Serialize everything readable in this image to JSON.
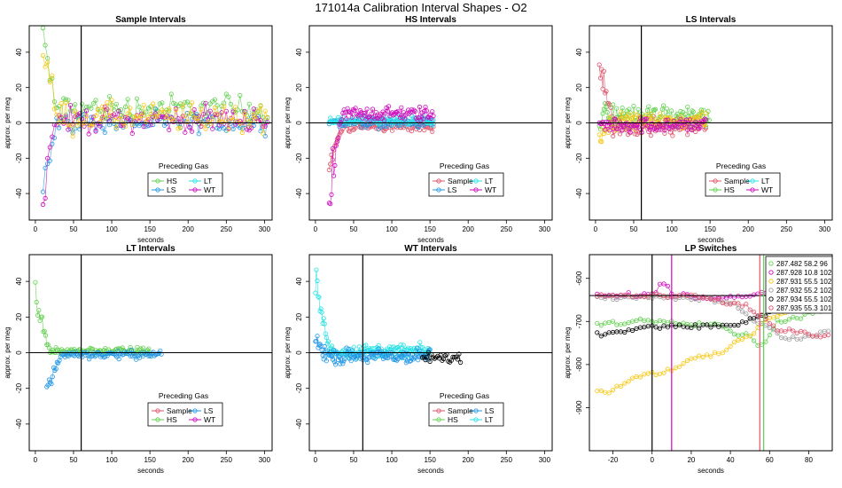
{
  "figure_title": "171014a   Calibration Interval Shapes - O2",
  "colors": {
    "Sample": "#df536b",
    "HS": "#61d04f",
    "LS": "#2297e6",
    "LT": "#28e2e5",
    "WT": "#cd0bbc",
    "ST": "#f5c710",
    "OTHER": "#000000",
    "GRAY": "#9e9e9e"
  },
  "chart_data": [
    {
      "id": "sample",
      "type": "scatter",
      "title": "Sample Intervals",
      "xlabel": "seconds",
      "ylabel": "approx. per meg",
      "xlim": [
        -8,
        310
      ],
      "ylim": [
        -55,
        55
      ],
      "xticks": [
        0,
        50,
        100,
        150,
        200,
        250,
        300
      ],
      "yticks": [
        -40,
        -20,
        0,
        20,
        40
      ],
      "vlines": [
        60
      ],
      "hline": 0,
      "legend": {
        "title": "Preceding Gas",
        "entries": [
          "HS",
          "LT",
          "LS",
          "WT"
        ]
      },
      "series": [
        {
          "name": "HS",
          "color": "#61d04f",
          "kind": "noisy",
          "start": 10,
          "end": 305,
          "dt": 3,
          "amp": 6,
          "drift": 8,
          "spike": 45
        },
        {
          "name": "LS",
          "color": "#2297e6",
          "kind": "noisy",
          "start": 10,
          "end": 305,
          "dt": 3,
          "amp": 4,
          "drift": 0,
          "spike": -40
        },
        {
          "name": "WT",
          "color": "#cd0bbc",
          "kind": "noisy",
          "start": 10,
          "end": 305,
          "dt": 3,
          "amp": 5,
          "drift": 2,
          "spike": -50
        },
        {
          "name": "ST",
          "color": "#f5c710",
          "kind": "noisy",
          "start": 10,
          "end": 305,
          "dt": 3,
          "amp": 6,
          "drift": 3,
          "spike": 55
        }
      ]
    },
    {
      "id": "hs",
      "type": "scatter",
      "title": "HS Intervals",
      "xlabel": "seconds",
      "ylabel": "approx. per meg",
      "xlim": [
        -8,
        310
      ],
      "ylim": [
        -55,
        55
      ],
      "xticks": [
        0,
        50,
        100,
        150,
        200,
        250,
        300
      ],
      "yticks": [
        -40,
        -20,
        0,
        20,
        40
      ],
      "vlines": [],
      "hline": 0,
      "legend": {
        "title": "Preceding Gas",
        "entries": [
          "Sample",
          "LT",
          "LS",
          "WT"
        ]
      },
      "series": [
        {
          "name": "Sample",
          "color": "#df536b",
          "kind": "noisy",
          "start": 18,
          "end": 155,
          "dt": 1.5,
          "amp": 2,
          "drift": -2,
          "spike": -25
        },
        {
          "name": "LS",
          "color": "#2297e6",
          "kind": "noisy",
          "start": 18,
          "end": 155,
          "dt": 1.5,
          "amp": 2,
          "drift": 0,
          "spike": 0
        },
        {
          "name": "LT",
          "color": "#28e2e5",
          "kind": "noisy",
          "start": 18,
          "end": 155,
          "dt": 1.5,
          "amp": 2,
          "drift": 1,
          "spike": 0
        },
        {
          "name": "WT",
          "color": "#cd0bbc",
          "kind": "noisy",
          "start": 18,
          "end": 155,
          "dt": 1.5,
          "amp": 3,
          "drift": 5,
          "spike": -55
        }
      ]
    },
    {
      "id": "ls",
      "type": "scatter",
      "title": "LS Intervals",
      "xlabel": "seconds",
      "ylabel": "approx. per meg",
      "xlim": [
        -8,
        310
      ],
      "ylim": [
        -55,
        55
      ],
      "xticks": [
        0,
        50,
        100,
        150,
        200,
        250,
        300
      ],
      "yticks": [
        -40,
        -20,
        0,
        20,
        40
      ],
      "vlines": [
        60
      ],
      "hline": 0,
      "legend": {
        "title": "Preceding Gas",
        "entries": [
          "Sample",
          "LT",
          "HS",
          "WT"
        ]
      },
      "series": [
        {
          "name": "Sample",
          "color": "#df536b",
          "kind": "noisy",
          "start": 5,
          "end": 145,
          "dt": 1.5,
          "amp": 4,
          "drift": -2,
          "spike": 50
        },
        {
          "name": "HS",
          "color": "#61d04f",
          "kind": "noisy",
          "start": 5,
          "end": 150,
          "dt": 1.5,
          "amp": 5,
          "drift": 4,
          "spike": 0
        },
        {
          "name": "ST",
          "color": "#f5c710",
          "kind": "noisy",
          "start": 5,
          "end": 145,
          "dt": 1.5,
          "amp": 3,
          "drift": 1,
          "spike": -10
        },
        {
          "name": "WT",
          "color": "#cd0bbc",
          "kind": "noisy",
          "start": 5,
          "end": 145,
          "dt": 1.5,
          "amp": 3,
          "drift": -1,
          "spike": 0
        }
      ]
    },
    {
      "id": "lt",
      "type": "scatter",
      "title": "LT Intervals",
      "xlabel": "seconds",
      "ylabel": "approx. per meg",
      "xlim": [
        -8,
        310
      ],
      "ylim": [
        -55,
        55
      ],
      "xticks": [
        0,
        50,
        100,
        150,
        200,
        250,
        300
      ],
      "yticks": [
        -40,
        -20,
        0,
        20,
        40
      ],
      "vlines": [
        60
      ],
      "hline": 0,
      "legend": {
        "title": "Preceding Gas",
        "entries": [
          "Sample",
          "LS",
          "HS",
          "WT"
        ]
      },
      "series": [
        {
          "name": "HS",
          "color": "#61d04f",
          "kind": "noisy",
          "start": 0,
          "end": 150,
          "dt": 1.5,
          "amp": 1.5,
          "drift": 1,
          "spike": 38
        },
        {
          "name": "LS",
          "color": "#2297e6",
          "kind": "noisy",
          "start": 15,
          "end": 165,
          "dt": 1.5,
          "amp": 1.5,
          "drift": -1,
          "spike": -27
        }
      ]
    },
    {
      "id": "wt",
      "type": "scatter",
      "title": "WT Intervals",
      "xlabel": "seconds",
      "ylabel": "approx. per meg",
      "xlim": [
        -8,
        310
      ],
      "ylim": [
        -55,
        55
      ],
      "xticks": [
        0,
        50,
        100,
        150,
        200,
        250,
        300
      ],
      "yticks": [
        -40,
        -20,
        0,
        20,
        40
      ],
      "vlines": [
        62
      ],
      "hline": 0,
      "legend": {
        "title": "Preceding Gas",
        "entries": [
          "Sample",
          "LS",
          "HS",
          "LT"
        ]
      },
      "series": [
        {
          "name": "LT",
          "color": "#28e2e5",
          "kind": "noisy",
          "start": 0,
          "end": 150,
          "dt": 1.2,
          "amp": 2.5,
          "drift": 1,
          "spike": 50
        },
        {
          "name": "LS",
          "color": "#2297e6",
          "kind": "noisy",
          "start": 0,
          "end": 150,
          "dt": 1.2,
          "amp": 3,
          "drift": -2,
          "spike": 10
        },
        {
          "name": "OTHER",
          "color": "#000000",
          "kind": "noisy",
          "start": 140,
          "end": 190,
          "dt": 2,
          "amp": 2,
          "drift": -3,
          "spike": 0
        }
      ]
    },
    {
      "id": "lp",
      "type": "scatter",
      "title": "LP Switches",
      "xlabel": "seconds",
      "ylabel": "approx. per meg",
      "xlim": [
        -32,
        92
      ],
      "ylim": [
        -1000,
        -545
      ],
      "xticks": [
        -20,
        0,
        20,
        40,
        60,
        80
      ],
      "yticks": [
        -900,
        -800,
        -700,
        -600
      ],
      "vlines": [
        0,
        10,
        55,
        57
      ],
      "vline_colors": [
        "#000000",
        "#cd0bbc",
        "#df536b",
        "#61d04f"
      ],
      "hline": -640,
      "legend_entries": [
        "287.482 58.2 96",
        "287.928 10.8 102",
        "287.931 55.5 102",
        "287.932 55.2 102",
        "287.934 55.5 102",
        "287.935 55.3 101"
      ],
      "legend_colors": [
        "#61d04f",
        "#cd0bbc",
        "#f5c710",
        "#9e9e9e",
        "#000000",
        "#df536b"
      ],
      "series": [
        {
          "name": "287.482 58.2 96",
          "color": "#61d04f",
          "kind": "curve",
          "pts": [
            [
              -28,
              -705
            ],
            [
              0,
              -698
            ],
            [
              30,
              -705
            ],
            [
              50,
              -735
            ],
            [
              55,
              -755
            ],
            [
              65,
              -700
            ],
            [
              90,
              -670
            ]
          ]
        },
        {
          "name": "287.928 10.8 102",
          "color": "#cd0bbc",
          "kind": "curve",
          "pts": [
            [
              -28,
              -640
            ],
            [
              0,
              -640
            ],
            [
              5,
              -610
            ],
            [
              12,
              -640
            ],
            [
              40,
              -645
            ],
            [
              60,
              -630
            ],
            [
              90,
              -628
            ]
          ]
        },
        {
          "name": "287.931 55.5 102",
          "color": "#f5c710",
          "kind": "curve",
          "pts": [
            [
              -28,
              -865
            ],
            [
              0,
              -820
            ],
            [
              30,
              -780
            ],
            [
              50,
              -735
            ],
            [
              60,
              -690
            ],
            [
              75,
              -665
            ],
            [
              90,
              -655
            ]
          ]
        },
        {
          "name": "287.932 55.2 102",
          "color": "#9e9e9e",
          "kind": "curve",
          "pts": [
            [
              -28,
              -645
            ],
            [
              20,
              -645
            ],
            [
              40,
              -655
            ],
            [
              55,
              -705
            ],
            [
              70,
              -740
            ],
            [
              90,
              -725
            ]
          ]
        },
        {
          "name": "287.934 55.5 102",
          "color": "#000000",
          "kind": "curve",
          "pts": [
            [
              -28,
              -730
            ],
            [
              0,
              -713
            ],
            [
              40,
              -710
            ],
            [
              55,
              -690
            ],
            [
              65,
              -665
            ],
            [
              90,
              -660
            ]
          ]
        },
        {
          "name": "287.935 55.3 101",
          "color": "#df536b",
          "kind": "curve",
          "pts": [
            [
              -28,
              -640
            ],
            [
              20,
              -642
            ],
            [
              45,
              -660
            ],
            [
              55,
              -685
            ],
            [
              65,
              -720
            ],
            [
              90,
              -735
            ]
          ]
        }
      ]
    }
  ]
}
